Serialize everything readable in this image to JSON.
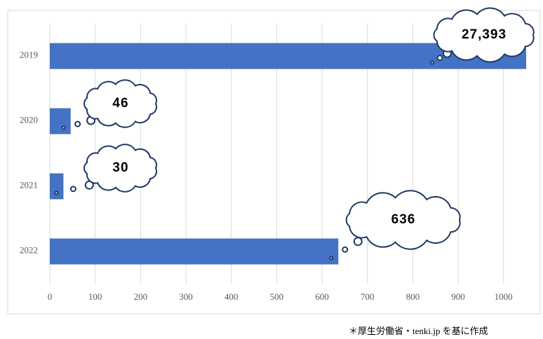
{
  "chart_data": {
    "type": "bar",
    "orientation": "horizontal",
    "categories": [
      "2019",
      "2020",
      "2021",
      "2022"
    ],
    "values": [
      27393,
      46,
      30,
      636
    ],
    "value_labels": [
      "27,393",
      "46",
      "30",
      "636"
    ],
    "color": "#4472c4",
    "xlim": [
      0,
      1050
    ],
    "xticks": [
      0,
      100,
      200,
      300,
      400,
      500,
      600,
      700,
      800,
      900,
      1000
    ],
    "grid": true,
    "note": "＊厚生労働省・tenki.jp を基に作成"
  }
}
